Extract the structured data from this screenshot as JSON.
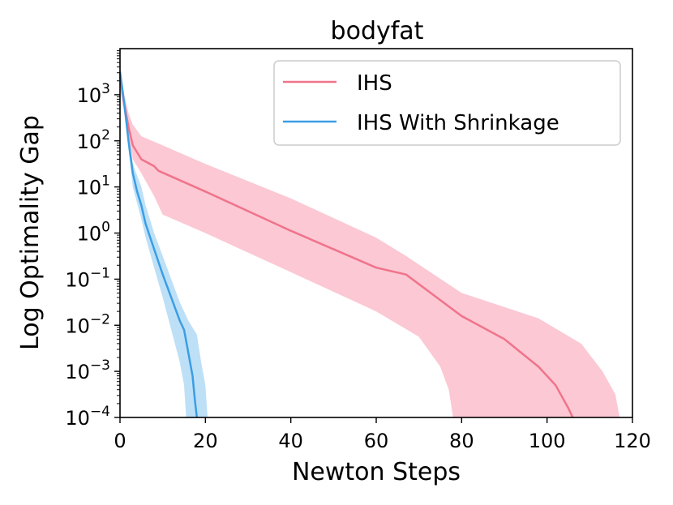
{
  "chart_data": {
    "type": "line",
    "title": "bodyfat",
    "xlabel": "Newton Steps",
    "ylabel": "Log Optimality Gap",
    "xlim": [
      0,
      120
    ],
    "ylim_log10": [
      -4,
      4
    ],
    "yscale": "log",
    "grid": false,
    "legend_position": "top-right",
    "x_ticks": [
      0,
      20,
      40,
      60,
      80,
      100,
      120
    ],
    "x_tick_labels": [
      "0",
      "20",
      "40",
      "60",
      "80",
      "100",
      "120"
    ],
    "y_ticks": [
      {
        "exp": 3,
        "base": "10",
        "sup": "3"
      },
      {
        "exp": 2,
        "base": "10",
        "sup": "2"
      },
      {
        "exp": 1,
        "base": "10",
        "sup": "1"
      },
      {
        "exp": 0,
        "base": "10",
        "sup": "0"
      },
      {
        "exp": -1,
        "base": "10",
        "sup": "−1"
      },
      {
        "exp": -2,
        "base": "10",
        "sup": "−2"
      },
      {
        "exp": -3,
        "base": "10",
        "sup": "−3"
      },
      {
        "exp": -4,
        "base": "10",
        "sup": "−4"
      }
    ],
    "series": [
      {
        "name": "IHS",
        "color": "#f0738a",
        "band_color": "#fbc8d4",
        "mean": [
          [
            0,
            3.4
          ],
          [
            1,
            2.8
          ],
          [
            2,
            2.3
          ],
          [
            3,
            1.9
          ],
          [
            5,
            1.6
          ],
          [
            8,
            1.45
          ],
          [
            9,
            1.35
          ],
          [
            20,
            0.9
          ],
          [
            40,
            0.05
          ],
          [
            60,
            -0.75
          ],
          [
            67,
            -0.9
          ],
          [
            80,
            -1.8
          ],
          [
            90,
            -2.3
          ],
          [
            98,
            -2.9
          ],
          [
            102,
            -3.3
          ],
          [
            105,
            -3.8
          ],
          [
            106,
            -4.0
          ]
        ],
        "band_upper": [
          [
            0,
            3.6
          ],
          [
            1,
            3.0
          ],
          [
            2,
            2.6
          ],
          [
            3,
            2.35
          ],
          [
            5,
            2.1
          ],
          [
            10,
            1.9
          ],
          [
            20,
            1.5
          ],
          [
            40,
            0.75
          ],
          [
            60,
            -0.1
          ],
          [
            67,
            -0.5
          ],
          [
            80,
            -1.3
          ],
          [
            98,
            -1.85
          ],
          [
            108,
            -2.4
          ],
          [
            113,
            -3.0
          ],
          [
            116,
            -3.5
          ],
          [
            117,
            -4.0
          ]
        ],
        "band_lower": [
          [
            0,
            3.1
          ],
          [
            1,
            2.6
          ],
          [
            2,
            2.1
          ],
          [
            3,
            1.6
          ],
          [
            5,
            1.3
          ],
          [
            8,
            0.8
          ],
          [
            10,
            0.4
          ],
          [
            20,
            0.0
          ],
          [
            40,
            -0.85
          ],
          [
            60,
            -1.7
          ],
          [
            70,
            -2.25
          ],
          [
            75,
            -2.9
          ],
          [
            77,
            -3.4
          ],
          [
            78,
            -4.0
          ]
        ]
      },
      {
        "name": "IHS With Shrinkage",
        "color": "#3a9ee4",
        "band_color": "#bde0f7",
        "mean": [
          [
            0,
            3.5
          ],
          [
            1,
            2.8
          ],
          [
            2,
            2.0
          ],
          [
            3,
            1.3
          ],
          [
            4,
            0.9
          ],
          [
            5,
            0.6
          ],
          [
            6,
            0.2
          ],
          [
            8,
            -0.35
          ],
          [
            10,
            -0.9
          ],
          [
            12,
            -1.4
          ],
          [
            14,
            -1.9
          ],
          [
            15,
            -2.1
          ],
          [
            16,
            -2.6
          ],
          [
            17,
            -3.1
          ],
          [
            17.5,
            -3.6
          ],
          [
            18,
            -4.0
          ]
        ],
        "band_upper": [
          [
            0,
            3.6
          ],
          [
            1,
            2.9
          ],
          [
            2,
            2.2
          ],
          [
            3,
            1.5
          ],
          [
            5,
            1.0
          ],
          [
            6,
            0.6
          ],
          [
            8,
            0.0
          ],
          [
            10,
            -0.5
          ],
          [
            12,
            -1.0
          ],
          [
            14,
            -1.5
          ],
          [
            16,
            -1.9
          ],
          [
            18,
            -2.2
          ],
          [
            19,
            -2.8
          ],
          [
            20,
            -3.3
          ],
          [
            20.5,
            -4.0
          ]
        ],
        "band_lower": [
          [
            0,
            3.4
          ],
          [
            1,
            2.7
          ],
          [
            2,
            1.8
          ],
          [
            3,
            1.0
          ],
          [
            5,
            0.3
          ],
          [
            6,
            -0.1
          ],
          [
            8,
            -0.75
          ],
          [
            10,
            -1.4
          ],
          [
            12,
            -2.1
          ],
          [
            14,
            -2.8
          ],
          [
            15,
            -3.3
          ],
          [
            15.5,
            -4.0
          ]
        ]
      }
    ]
  }
}
